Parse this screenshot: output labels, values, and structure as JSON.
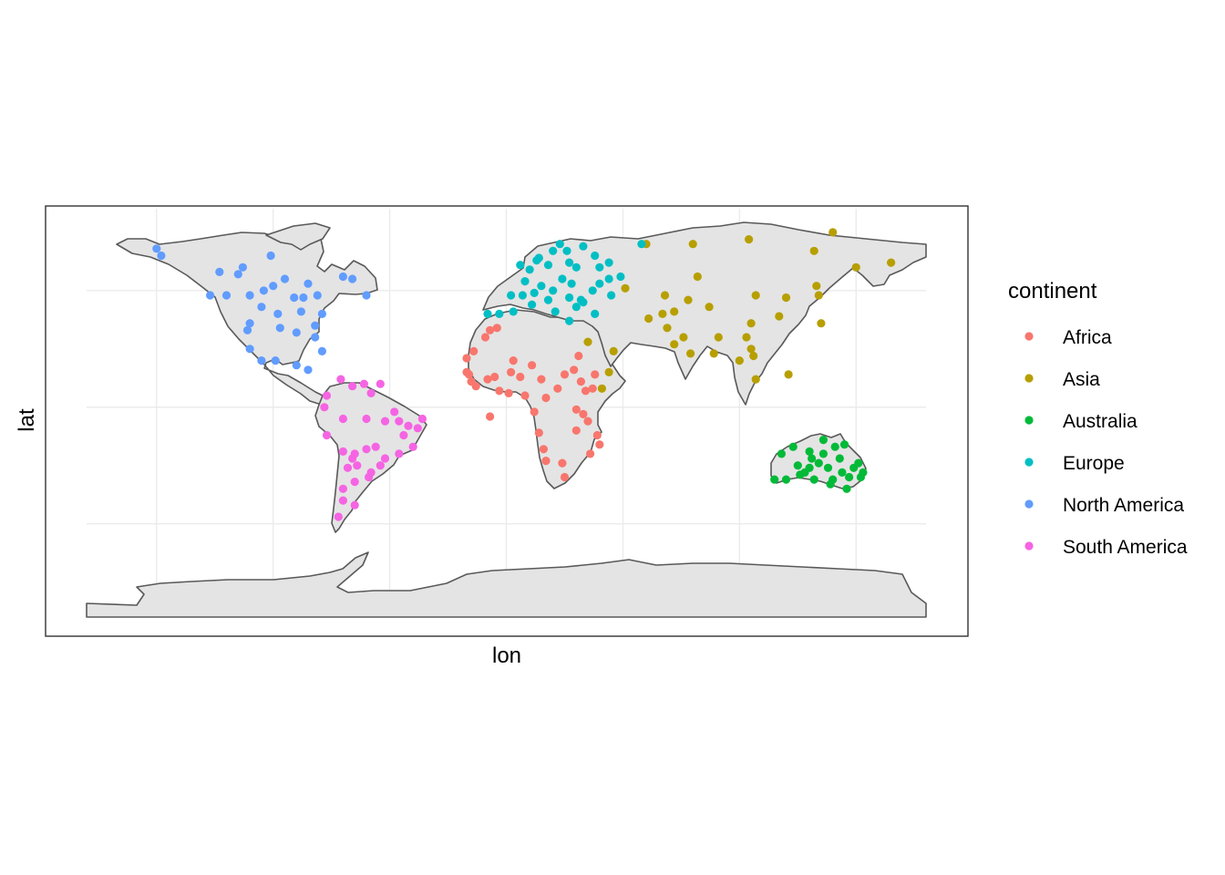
{
  "chart_data": {
    "type": "scatter",
    "title": "",
    "xlabel": "lon",
    "ylabel": "lat",
    "xlim": [
      -180,
      180
    ],
    "ylim": [
      -90,
      85
    ],
    "grid": true,
    "legend": {
      "title": "continent",
      "position": "right"
    },
    "series": [
      {
        "name": "Africa",
        "color": "#F8766D",
        "points": [
          [
            -7,
            33
          ],
          [
            -4,
            34
          ],
          [
            -9,
            30
          ],
          [
            -17,
            15
          ],
          [
            -16,
            14
          ],
          [
            -15,
            11
          ],
          [
            -13,
            9
          ],
          [
            -8,
            12
          ],
          [
            -5,
            13
          ],
          [
            2,
            15
          ],
          [
            6,
            13
          ],
          [
            3,
            20
          ],
          [
            11,
            18
          ],
          [
            15,
            12
          ],
          [
            17,
            4
          ],
          [
            22,
            8
          ],
          [
            25,
            14
          ],
          [
            29,
            16
          ],
          [
            31,
            22
          ],
          [
            32,
            11
          ],
          [
            34,
            7
          ],
          [
            37,
            8
          ],
          [
            38,
            14
          ],
          [
            30,
            -1
          ],
          [
            33,
            -3
          ],
          [
            35,
            -6
          ],
          [
            30,
            -10
          ],
          [
            39,
            -12
          ],
          [
            40,
            -16
          ],
          [
            36,
            -20
          ],
          [
            14,
            -11
          ],
          [
            16,
            -18
          ],
          [
            17,
            -23
          ],
          [
            24,
            -24
          ],
          [
            25,
            -30
          ],
          [
            -17,
            21
          ],
          [
            -14,
            24
          ],
          [
            -7,
            -4
          ],
          [
            12,
            -2
          ],
          [
            8,
            5
          ],
          [
            -3,
            7
          ],
          [
            1,
            6
          ]
        ]
      },
      {
        "name": "Asia",
        "color": "#B79F00",
        "points": [
          [
            51,
            51
          ],
          [
            68,
            48
          ],
          [
            61,
            38
          ],
          [
            67,
            40
          ],
          [
            69,
            34
          ],
          [
            72,
            41
          ],
          [
            78,
            46
          ],
          [
            82,
            56
          ],
          [
            87,
            43
          ],
          [
            107,
            48
          ],
          [
            105,
            36
          ],
          [
            117,
            39
          ],
          [
            120,
            47
          ],
          [
            133,
            52
          ],
          [
            134,
            48
          ],
          [
            135,
            36
          ],
          [
            103,
            30
          ],
          [
            91,
            30
          ],
          [
            89,
            23
          ],
          [
            100,
            20
          ],
          [
            106,
            22
          ],
          [
            121,
            14
          ],
          [
            107,
            12
          ],
          [
            79,
            23
          ],
          [
            72,
            27
          ],
          [
            76,
            30
          ],
          [
            60,
            70
          ],
          [
            80,
            70
          ],
          [
            104,
            72
          ],
          [
            132,
            67
          ],
          [
            150,
            60
          ],
          [
            165,
            62
          ],
          [
            140,
            75
          ],
          [
            105,
            25
          ],
          [
            41,
            8
          ],
          [
            44,
            15
          ],
          [
            46,
            24
          ],
          [
            35,
            28
          ]
        ]
      },
      {
        "name": "Australia",
        "color": "#00BA38",
        "points": [
          [
            115,
            -31
          ],
          [
            118,
            -20
          ],
          [
            120,
            -31
          ],
          [
            123,
            -17
          ],
          [
            125,
            -25
          ],
          [
            128,
            -28
          ],
          [
            130,
            -19
          ],
          [
            131,
            -22
          ],
          [
            132,
            -31
          ],
          [
            134,
            -24
          ],
          [
            136,
            -14
          ],
          [
            136,
            -20
          ],
          [
            138,
            -26
          ],
          [
            140,
            -31
          ],
          [
            141,
            -17
          ],
          [
            143,
            -22
          ],
          [
            144,
            -28
          ],
          [
            145,
            -16
          ],
          [
            146,
            -35
          ],
          [
            147,
            -30
          ],
          [
            149,
            -26
          ],
          [
            151,
            -24
          ],
          [
            152,
            -30
          ],
          [
            153,
            -28
          ],
          [
            130,
            -26
          ],
          [
            139,
            -33
          ],
          [
            126,
            -29
          ]
        ]
      },
      {
        "name": "Europe",
        "color": "#00BFC4",
        "points": [
          [
            -8,
            40
          ],
          [
            -3,
            40
          ],
          [
            3,
            41
          ],
          [
            2,
            48
          ],
          [
            7,
            48
          ],
          [
            11,
            44
          ],
          [
            12,
            49
          ],
          [
            15,
            52
          ],
          [
            18,
            46
          ],
          [
            20,
            50
          ],
          [
            24,
            55
          ],
          [
            28,
            53
          ],
          [
            27,
            47
          ],
          [
            30,
            43
          ],
          [
            33,
            45
          ],
          [
            37,
            50
          ],
          [
            40,
            53
          ],
          [
            44,
            55
          ],
          [
            49,
            56
          ],
          [
            40,
            60
          ],
          [
            30,
            60
          ],
          [
            18,
            61
          ],
          [
            10,
            59
          ],
          [
            14,
            64
          ],
          [
            20,
            67
          ],
          [
            23,
            70
          ],
          [
            26,
            67
          ],
          [
            33,
            69
          ],
          [
            38,
            65
          ],
          [
            44,
            62
          ],
          [
            45,
            48
          ],
          [
            38,
            40
          ],
          [
            21,
            41
          ],
          [
            13,
            63
          ],
          [
            6,
            61
          ],
          [
            8,
            54
          ],
          [
            27,
            62
          ],
          [
            58,
            70
          ],
          [
            32,
            46
          ],
          [
            27,
            37
          ]
        ]
      },
      {
        "name": "North America",
        "color": "#619CFF",
        "points": [
          [
            -150,
            68
          ],
          [
            -148,
            65
          ],
          [
            -123,
            58
          ],
          [
            -115,
            57
          ],
          [
            -127,
            48
          ],
          [
            -120,
            48
          ],
          [
            -110,
            48
          ],
          [
            -113,
            60
          ],
          [
            -100,
            52
          ],
          [
            -95,
            55
          ],
          [
            -104,
            50
          ],
          [
            -91,
            47
          ],
          [
            -87,
            47
          ],
          [
            -81,
            48
          ],
          [
            -85,
            53
          ],
          [
            -70,
            56
          ],
          [
            -66,
            55
          ],
          [
            -60,
            48
          ],
          [
            -79,
            40
          ],
          [
            -88,
            41
          ],
          [
            -98,
            40
          ],
          [
            -105,
            43
          ],
          [
            -110,
            36
          ],
          [
            -111,
            33
          ],
          [
            -97,
            34
          ],
          [
            -90,
            32
          ],
          [
            -82,
            35
          ],
          [
            -110,
            25
          ],
          [
            -105,
            20
          ],
          [
            -99,
            20
          ],
          [
            -90,
            18
          ],
          [
            -85,
            16
          ],
          [
            -82,
            30
          ],
          [
            -101,
            65
          ],
          [
            -79,
            24
          ]
        ]
      },
      {
        "name": "South America",
        "color": "#F564E3",
        "points": [
          [
            -77,
            5
          ],
          [
            -71,
            12
          ],
          [
            -61,
            10
          ],
          [
            -66,
            9
          ],
          [
            -58,
            6
          ],
          [
            -54,
            10
          ],
          [
            -70,
            -5
          ],
          [
            -60,
            -5
          ],
          [
            -52,
            -6
          ],
          [
            -48,
            -2
          ],
          [
            -46,
            -6
          ],
          [
            -42,
            -8
          ],
          [
            -38,
            -9
          ],
          [
            -36,
            -5
          ],
          [
            -44,
            -12
          ],
          [
            -40,
            -17
          ],
          [
            -46,
            -20
          ],
          [
            -52,
            -22
          ],
          [
            -54,
            -25
          ],
          [
            -60,
            -18
          ],
          [
            -65,
            -20
          ],
          [
            -70,
            -19
          ],
          [
            -64,
            -25
          ],
          [
            -58,
            -28
          ],
          [
            -65,
            -32
          ],
          [
            -70,
            -35
          ],
          [
            -70,
            -40
          ],
          [
            -72,
            -47
          ],
          [
            -65,
            -42
          ],
          [
            -77,
            -12
          ],
          [
            -78,
            0
          ],
          [
            -66,
            -22
          ],
          [
            -59,
            -30
          ],
          [
            -68,
            -26
          ],
          [
            -56,
            -17
          ]
        ]
      }
    ]
  }
}
